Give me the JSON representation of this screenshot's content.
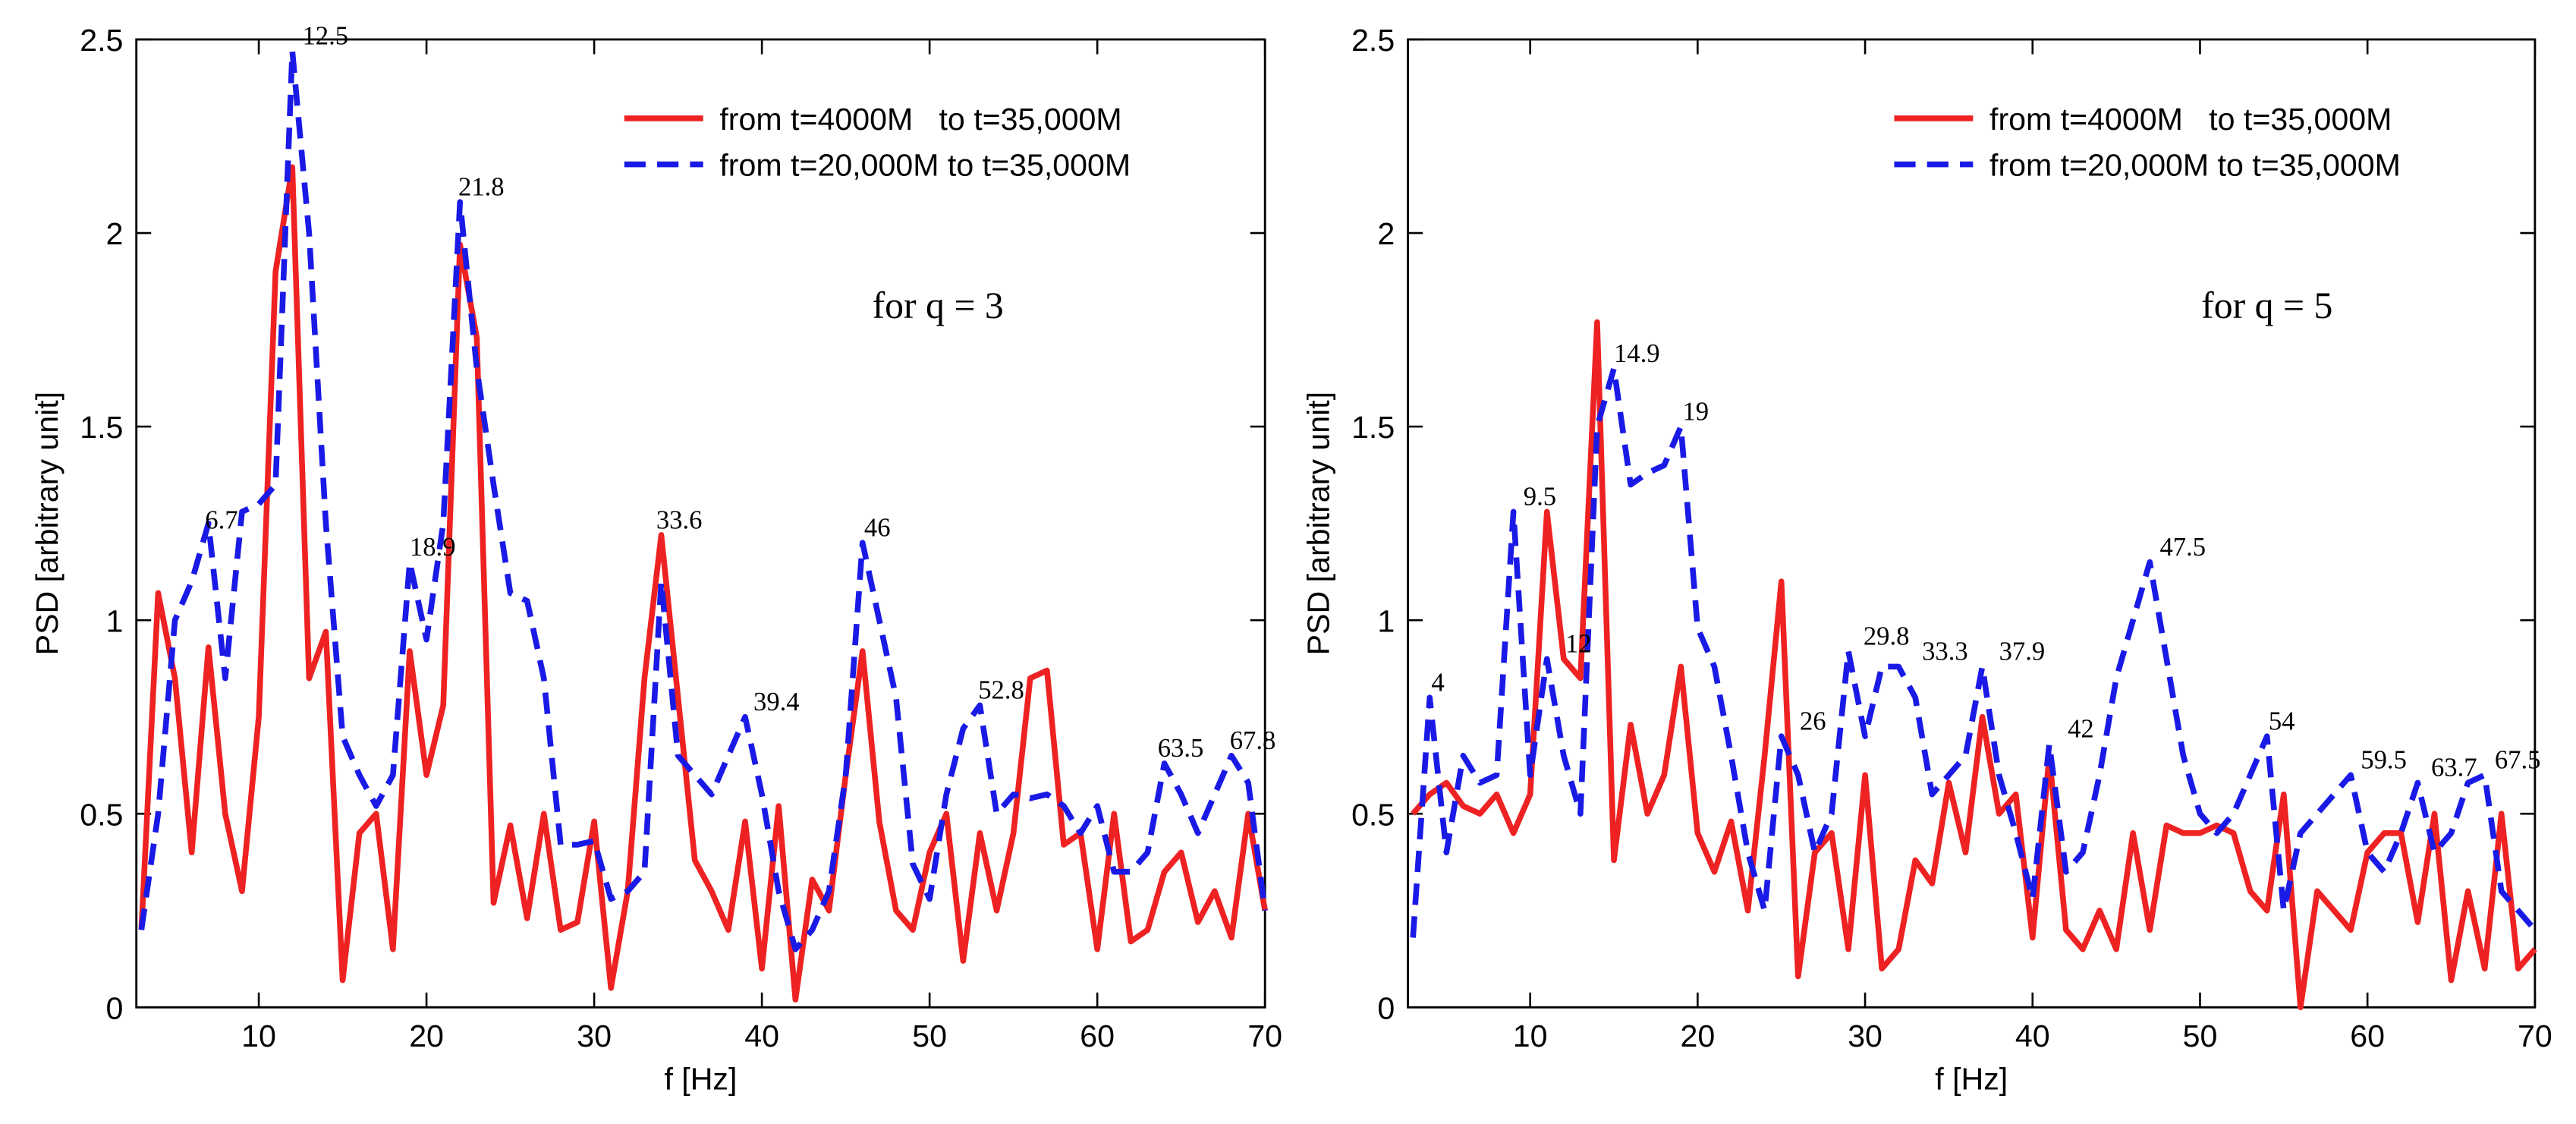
{
  "chart_data": [
    {
      "type": "line",
      "xlabel": "f [Hz]",
      "ylabel": "PSD [arbitrary unit]",
      "xlim": [
        2.7,
        70
      ],
      "ylim": [
        0,
        2.5
      ],
      "xticks": [
        10,
        20,
        30,
        40,
        50,
        60,
        70
      ],
      "yticks": [
        0,
        0.5,
        1,
        1.5,
        2,
        2.5
      ],
      "legend": "upper right",
      "x": [
        3,
        4,
        5,
        6,
        7,
        8,
        9,
        10,
        11,
        12,
        13,
        14,
        15,
        16,
        17,
        18,
        19,
        20,
        21,
        22,
        23,
        24,
        25,
        26,
        27,
        28,
        29,
        30,
        31,
        32,
        33,
        34,
        35,
        36,
        37,
        38,
        39,
        40,
        41,
        42,
        43,
        44,
        45,
        46,
        47,
        48,
        49,
        50,
        51,
        52,
        53,
        54,
        55,
        56,
        57,
        58,
        59,
        60,
        61,
        62,
        63,
        64,
        65,
        66,
        67,
        68,
        69,
        70
      ],
      "series": [
        {
          "name": "from t=4000M   to t=35,000M",
          "color": "#ee2222",
          "dash": false,
          "values": [
            0.2,
            1.07,
            0.85,
            0.4,
            0.93,
            0.5,
            0.3,
            0.75,
            1.9,
            2.17,
            0.85,
            0.97,
            0.07,
            0.45,
            0.5,
            0.15,
            0.92,
            0.6,
            0.78,
            1.97,
            1.73,
            0.27,
            0.47,
            0.23,
            0.5,
            0.2,
            0.22,
            0.48,
            0.05,
            0.3,
            0.85,
            1.22,
            0.8,
            0.38,
            0.3,
            0.2,
            0.48,
            0.1,
            0.52,
            0.02,
            0.33,
            0.25,
            0.6,
            0.92,
            0.48,
            0.25,
            0.2,
            0.4,
            0.5,
            0.12,
            0.45,
            0.25,
            0.45,
            0.85,
            0.87,
            0.42,
            0.45,
            0.15,
            0.5,
            0.17,
            0.2,
            0.35,
            0.4,
            0.22,
            0.3,
            0.18,
            0.5,
            0.25
          ]
        },
        {
          "name": "from t=20,000M to t=35,000M",
          "color": "#1a1ae6",
          "dash": true,
          "values": [
            0.2,
            0.5,
            1.0,
            1.1,
            1.25,
            0.85,
            1.28,
            1.3,
            1.35,
            2.47,
            2.0,
            1.25,
            0.7,
            0.6,
            0.52,
            0.6,
            1.15,
            0.95,
            1.25,
            2.08,
            1.65,
            1.35,
            1.07,
            1.05,
            0.85,
            0.42,
            0.42,
            0.43,
            0.28,
            0.3,
            0.35,
            1.1,
            0.65,
            0.6,
            0.55,
            0.65,
            0.75,
            0.55,
            0.3,
            0.15,
            0.2,
            0.3,
            0.6,
            1.2,
            1.0,
            0.8,
            0.37,
            0.28,
            0.55,
            0.72,
            0.78,
            0.5,
            0.55,
            0.54,
            0.55,
            0.52,
            0.45,
            0.52,
            0.35,
            0.35,
            0.4,
            0.63,
            0.55,
            0.45,
            0.55,
            0.65,
            0.58,
            0.25
          ]
        }
      ],
      "annotations": [
        {
          "text": "6.7",
          "x": 6.7,
          "y": 1.22
        },
        {
          "text": "12.5",
          "x": 12.5,
          "y": 2.47
        },
        {
          "text": "18.9",
          "x": 18.9,
          "y": 1.15
        },
        {
          "text": "21.8",
          "x": 21.8,
          "y": 2.08
        },
        {
          "text": "33.6",
          "x": 33.6,
          "y": 1.22
        },
        {
          "text": "39.4",
          "x": 39.4,
          "y": 0.75
        },
        {
          "text": "46",
          "x": 46,
          "y": 1.2
        },
        {
          "text": "52.8",
          "x": 52.8,
          "y": 0.78
        },
        {
          "text": "63.5",
          "x": 63.5,
          "y": 0.63
        },
        {
          "text": "67.8",
          "x": 67.8,
          "y": 0.65
        }
      ],
      "note": {
        "text": "for q = 3",
        "x": 50.5,
        "y": 1.78
      }
    },
    {
      "type": "line",
      "xlabel": "f [Hz]",
      "ylabel": "PSD [arbitrary unit]",
      "xlim": [
        2.7,
        70
      ],
      "ylim": [
        0,
        2.5
      ],
      "xticks": [
        10,
        20,
        30,
        40,
        50,
        60,
        70
      ],
      "yticks": [
        0,
        0.5,
        1,
        1.5,
        2,
        2.5
      ],
      "legend": "upper right",
      "x": [
        3,
        4,
        5,
        6,
        7,
        8,
        9,
        10,
        11,
        12,
        13,
        14,
        15,
        16,
        17,
        18,
        19,
        20,
        21,
        22,
        23,
        24,
        25,
        26,
        27,
        28,
        29,
        30,
        31,
        32,
        33,
        34,
        35,
        36,
        37,
        38,
        39,
        40,
        41,
        42,
        43,
        44,
        45,
        46,
        47,
        48,
        49,
        50,
        51,
        52,
        53,
        54,
        55,
        56,
        57,
        58,
        59,
        60,
        61,
        62,
        63,
        64,
        65,
        66,
        67,
        68,
        69,
        70
      ],
      "series": [
        {
          "name": "from t=4000M   to t=35,000M",
          "color": "#ee2222",
          "dash": false,
          "values": [
            0.5,
            0.55,
            0.58,
            0.52,
            0.5,
            0.55,
            0.45,
            0.55,
            1.28,
            0.9,
            0.85,
            1.77,
            0.38,
            0.73,
            0.5,
            0.6,
            0.88,
            0.45,
            0.35,
            0.48,
            0.25,
            0.65,
            1.1,
            0.08,
            0.4,
            0.45,
            0.15,
            0.6,
            0.1,
            0.15,
            0.38,
            0.32,
            0.58,
            0.4,
            0.75,
            0.5,
            0.55,
            0.18,
            0.65,
            0.2,
            0.15,
            0.25,
            0.15,
            0.45,
            0.2,
            0.47,
            0.45,
            0.45,
            0.47,
            0.45,
            0.3,
            0.25,
            0.55,
            0.0,
            0.3,
            0.25,
            0.2,
            0.4,
            0.45,
            0.45,
            0.22,
            0.5,
            0.07,
            0.3,
            0.1,
            0.5,
            0.1,
            0.15
          ]
        },
        {
          "name": "from t=20,000M to t=35,000M",
          "color": "#1a1ae6",
          "dash": true,
          "values": [
            0.18,
            0.8,
            0.4,
            0.65,
            0.58,
            0.6,
            1.28,
            0.6,
            0.9,
            0.65,
            0.5,
            1.5,
            1.65,
            1.35,
            1.38,
            1.4,
            1.5,
            0.98,
            0.88,
            0.65,
            0.4,
            0.25,
            0.7,
            0.6,
            0.4,
            0.5,
            0.92,
            0.7,
            0.88,
            0.88,
            0.8,
            0.55,
            0.6,
            0.65,
            0.88,
            0.6,
            0.45,
            0.28,
            0.68,
            0.35,
            0.4,
            0.6,
            0.85,
            1.0,
            1.15,
            0.9,
            0.65,
            0.5,
            0.45,
            0.5,
            0.6,
            0.7,
            0.25,
            0.45,
            0.5,
            0.55,
            0.6,
            0.4,
            0.35,
            0.45,
            0.58,
            0.4,
            0.45,
            0.58,
            0.6,
            0.3,
            0.25,
            0.2
          ]
        }
      ],
      "annotations": [
        {
          "text": "4",
          "x": 4,
          "y": 0.8
        },
        {
          "text": "9.5",
          "x": 9.5,
          "y": 1.28
        },
        {
          "text": "12",
          "x": 12,
          "y": 0.9
        },
        {
          "text": "14.9",
          "x": 14.9,
          "y": 1.65
        },
        {
          "text": "19",
          "x": 19,
          "y": 1.5
        },
        {
          "text": "26",
          "x": 26,
          "y": 0.7
        },
        {
          "text": "29.8",
          "x": 29.8,
          "y": 0.92
        },
        {
          "text": "33.3",
          "x": 33.3,
          "y": 0.88
        },
        {
          "text": "37.9",
          "x": 37.9,
          "y": 0.88
        },
        {
          "text": "42",
          "x": 42,
          "y": 0.68
        },
        {
          "text": "47.5",
          "x": 47.5,
          "y": 1.15
        },
        {
          "text": "54",
          "x": 54,
          "y": 0.7
        },
        {
          "text": "59.5",
          "x": 59.5,
          "y": 0.6
        },
        {
          "text": "63.7",
          "x": 63.7,
          "y": 0.58
        },
        {
          "text": "67.5",
          "x": 67.5,
          "y": 0.6
        }
      ],
      "note": {
        "text": "for q = 5",
        "x": 54,
        "y": 1.78
      }
    }
  ]
}
